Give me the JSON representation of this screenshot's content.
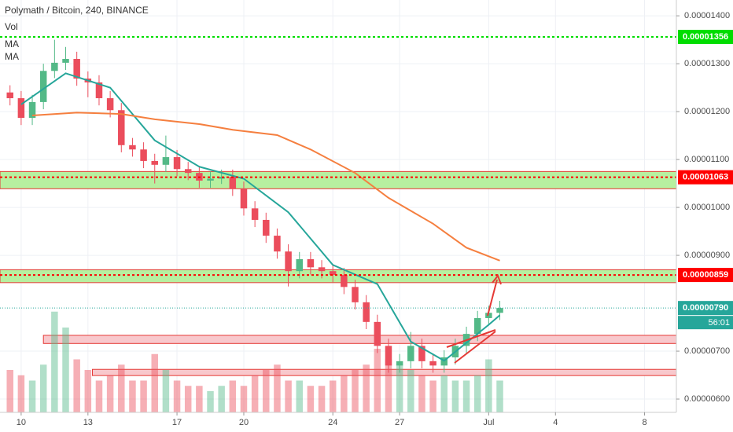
{
  "chart_data": {
    "type": "candlestick",
    "title": "Polymath / Bitcoin, 240, BINANCE",
    "legend": [
      "Vol",
      "MA",
      "MA"
    ],
    "up_color": "#53b987",
    "down_color": "#eb4d5c",
    "grid": true,
    "xlim": [
      -0.95,
      29.43
    ],
    "xticks": [
      {
        "value": 0,
        "label": "10"
      },
      {
        "value": 3,
        "label": "13"
      },
      {
        "value": 7,
        "label": "17"
      },
      {
        "value": 10,
        "label": "20"
      },
      {
        "value": 14,
        "label": "24"
      },
      {
        "value": 17,
        "label": "27"
      },
      {
        "value": 21,
        "label": "Jul"
      },
      {
        "value": 24,
        "label": "4"
      },
      {
        "value": 28,
        "label": "8"
      }
    ],
    "ylim": [
      5.64e-06,
      1.433e-05
    ],
    "yticks": [
      {
        "value": 1.4e-05,
        "label": "0.00001400"
      },
      {
        "value": 1.3e-05,
        "label": "0.00001300"
      },
      {
        "value": 1.2e-05,
        "label": "0.00001200"
      },
      {
        "value": 1.1e-05,
        "label": "0.00001100"
      },
      {
        "value": 1e-05,
        "label": "0.00001000"
      },
      {
        "value": 9e-06,
        "label": "0.00000900"
      },
      {
        "value": 7e-06,
        "label": "0.00000700"
      },
      {
        "value": 6e-06,
        "label": "0.00000600"
      }
    ],
    "candles": {
      "x": [
        -0.5,
        0,
        0.5,
        1,
        1.5,
        2,
        2.5,
        3,
        3.5,
        4,
        4.5,
        5,
        5.5,
        6,
        6.5,
        7,
        7.5,
        8,
        8.5,
        9,
        9.5,
        10,
        10.5,
        11,
        11.5,
        12,
        12.5,
        13,
        13.5,
        14,
        14.5,
        15,
        15.5,
        16,
        16.5,
        17,
        17.5,
        18,
        18.5,
        19,
        19.5,
        20,
        20.5,
        21,
        21.5
      ],
      "open": [
        1.24e-05,
        1.228e-05,
        1.187e-05,
        1.22e-05,
        1.285e-05,
        1.302e-05,
        1.31e-05,
        1.269e-05,
        1.261e-05,
        1.228e-05,
        1.203e-05,
        1.13e-05,
        1.121e-05,
        1.097e-05,
        1.089e-05,
        1.105e-05,
        1.08e-05,
        1.072e-05,
        1.056e-05,
        1.06e-05,
        1.064e-05,
        1.039e-05,
        9.98e-06,
        9.74e-06,
        9.41e-06,
        9.08e-06,
        8.67e-06,
        8.92e-06,
        8.75e-06,
        8.67e-06,
        8.59e-06,
        8.34e-06,
        8.02e-06,
        7.61e-06,
        7.11e-06,
        6.7e-06,
        6.79e-06,
        7.11e-06,
        6.79e-06,
        6.7e-06,
        6.87e-06,
        7.11e-06,
        7.36e-06,
        7.69e-06,
        7.8e-06
      ],
      "high": [
        1.255e-05,
        1.243e-05,
        1.235e-05,
        1.3e-05,
        1.35e-05,
        1.335e-05,
        1.325e-05,
        1.284e-05,
        1.276e-05,
        1.243e-05,
        1.218e-05,
        1.145e-05,
        1.136e-05,
        1.112e-05,
        1.15e-05,
        1.12e-05,
        1.095e-05,
        1.087e-05,
        1.075e-05,
        1.079e-05,
        1.079e-05,
        1.054e-05,
        1.013e-05,
        9.89e-06,
        9.56e-06,
        9.23e-06,
        9.07e-06,
        9.07e-06,
        8.9e-06,
        8.82e-06,
        8.74e-06,
        8.49e-06,
        8.17e-06,
        7.76e-06,
        7.26e-06,
        6.94e-06,
        7.4e-06,
        7.26e-06,
        6.94e-06,
        7.02e-06,
        7.26e-06,
        7.51e-06,
        7.84e-06,
        7.95e-06,
        8.05e-06
      ],
      "low": [
        1.213e-05,
        1.172e-05,
        1.172e-05,
        1.205e-05,
        1.27e-05,
        1.287e-05,
        1.254e-05,
        1.23e-05,
        1.213e-05,
        1.188e-05,
        1.115e-05,
        1.106e-05,
        1.082e-05,
        1.05e-05,
        1.074e-05,
        1.065e-05,
        1.057e-05,
        1.041e-05,
        1.041e-05,
        1.049e-05,
        1.024e-05,
        9.83e-06,
        9.59e-06,
        9.26e-06,
        8.93e-06,
        8.35e-06,
        8.52e-06,
        8.6e-06,
        8.52e-06,
        8.44e-06,
        8.19e-06,
        7.87e-06,
        7.46e-06,
        6.96e-06,
        6.55e-06,
        6.55e-06,
        6.64e-06,
        6.64e-06,
        6.55e-06,
        6.55e-06,
        6.72e-06,
        6.96e-06,
        7.21e-06,
        7.54e-06,
        7.65e-06
      ],
      "close": [
        1.228e-05,
        1.187e-05,
        1.22e-05,
        1.285e-05,
        1.302e-05,
        1.31e-05,
        1.269e-05,
        1.261e-05,
        1.228e-05,
        1.203e-05,
        1.13e-05,
        1.121e-05,
        1.097e-05,
        1.089e-05,
        1.105e-05,
        1.08e-05,
        1.072e-05,
        1.056e-05,
        1.06e-05,
        1.064e-05,
        1.039e-05,
        9.98e-06,
        9.74e-06,
        9.41e-06,
        9.08e-06,
        8.67e-06,
        8.92e-06,
        8.75e-06,
        8.67e-06,
        8.59e-06,
        8.34e-06,
        8.02e-06,
        7.61e-06,
        7.11e-06,
        6.7e-06,
        6.79e-06,
        7.11e-06,
        6.79e-06,
        6.7e-06,
        6.87e-06,
        7.11e-06,
        7.36e-06,
        7.69e-06,
        7.8e-06,
        7.9e-06
      ]
    },
    "volume": [
      40,
      35,
      30,
      45,
      95,
      80,
      50,
      40,
      30,
      35,
      45,
      30,
      30,
      55,
      40,
      30,
      25,
      25,
      20,
      25,
      30,
      25,
      35,
      40,
      45,
      30,
      30,
      25,
      25,
      30,
      35,
      40,
      45,
      60,
      50,
      45,
      40,
      35,
      30,
      35,
      30,
      30,
      35,
      50,
      30
    ],
    "vlim": [
      0,
      100
    ],
    "series": [
      {
        "name": "MA",
        "color": "#26a69a",
        "x": [
          0,
          2,
          4,
          6,
          8,
          10,
          12,
          14,
          16,
          17.5,
          19,
          21,
          21.5
        ],
        "values": [
          1.215e-05,
          1.28e-05,
          1.25e-05,
          1.14e-05,
          1.085e-05,
          1.06e-05,
          9.9e-06,
          8.8e-06,
          8.4e-06,
          7.2e-06,
          6.8e-06,
          7.55e-06,
          7.75e-06
        ]
      },
      {
        "name": "MA",
        "color": "#f57f3f",
        "x": [
          0.5,
          2.5,
          4.5,
          6,
          8,
          9.5,
          11.5,
          13,
          15,
          16.5,
          18.5,
          20,
          21.5
        ],
        "values": [
          1.192e-05,
          1.198e-05,
          1.195e-05,
          1.184e-05,
          1.174e-05,
          1.162e-05,
          1.151e-05,
          1.121e-05,
          1.072e-05,
          1.02e-05,
          9.66e-06,
          9.16e-06,
          8.89e-06
        ]
      }
    ],
    "zones": [
      {
        "from": 1.039e-05,
        "to": 1.075e-05,
        "color": "#b7f0a0",
        "border": "#e53935"
      },
      {
        "from": 8.43e-06,
        "to": 8.7e-06,
        "color": "#b7f0a0",
        "border": "#e53935"
      },
      {
        "from": 7.16e-06,
        "to": 7.33e-06,
        "color": "#f8c8cc",
        "border": "#e53935",
        "x_from": 1
      },
      {
        "from": 6.49e-06,
        "to": 6.62e-06,
        "color": "#f8c8cc",
        "border": "#e53935",
        "x_from": 3.2
      }
    ],
    "levels": [
      {
        "value": 1.356e-05,
        "label": "0.00001356",
        "color": "#00dd00"
      },
      {
        "value": 1.063e-05,
        "label": "0.00001063",
        "color": "#ff0000"
      },
      {
        "value": 8.59e-06,
        "label": "0.00000859",
        "color": "#ff0000"
      },
      {
        "value": 7.9e-06,
        "label": "0.00000790",
        "color": "#26a69a",
        "countdown": "56:01"
      }
    ]
  }
}
